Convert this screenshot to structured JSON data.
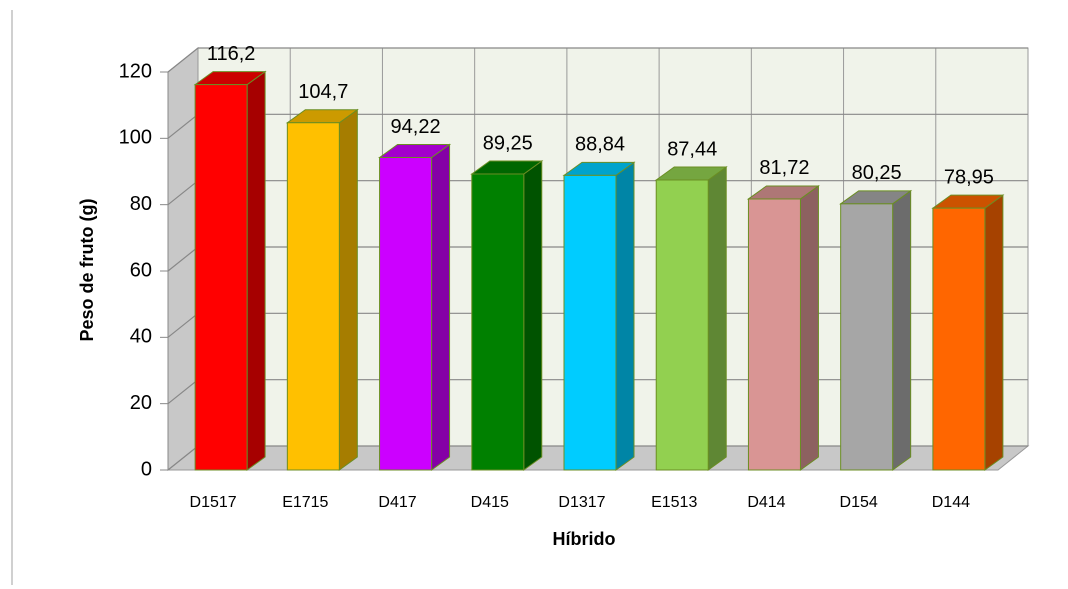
{
  "chart_data": {
    "type": "bar3d",
    "x_label": "Híbrido",
    "y_label": "Peso de fruto (g)",
    "categories": [
      "D1517",
      "E1715",
      "D417",
      "D415",
      "D1317",
      "E1513",
      "D414",
      "D154",
      "D144"
    ],
    "values": [
      116.2,
      104.7,
      94.22,
      89.25,
      88.84,
      87.44,
      81.72,
      80.25,
      78.95
    ],
    "value_labels": [
      "116,2",
      "104,7",
      "94,22",
      "89,25",
      "88,84",
      "87,44",
      "81,72",
      "80,25",
      "78,95"
    ],
    "colors": [
      "#ff0000",
      "#ffc000",
      "#cc00ff",
      "#008000",
      "#00ccff",
      "#92d050",
      "#d99594",
      "#a6a6a6",
      "#ff6600"
    ],
    "ylim": [
      0,
      120
    ],
    "yticks": [
      0,
      20,
      40,
      60,
      80,
      100,
      120
    ],
    "grid": true
  }
}
